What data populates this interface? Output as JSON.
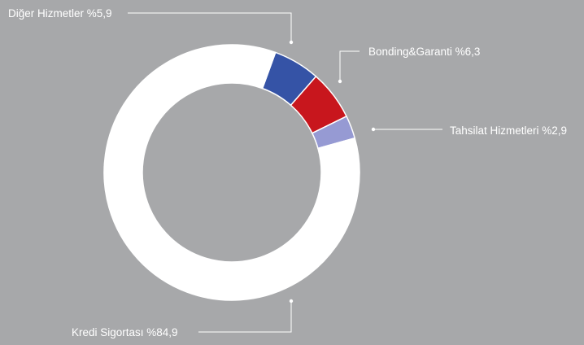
{
  "chart_data": {
    "type": "pie",
    "variant": "donut",
    "slices": [
      {
        "name": "Diğer Hizmetler",
        "value": 5.9,
        "color": "#3553a6"
      },
      {
        "name": "Bonding&Garanti",
        "value": 6.3,
        "color": "#c8161d"
      },
      {
        "name": "Tahsilat Hizmetleri",
        "value": 2.9,
        "color": "#969ad3"
      },
      {
        "name": "Kredi Sigortası",
        "value": 84.9,
        "color": "#ffffff"
      }
    ],
    "labels": {
      "diger": "Diğer Hizmetler %5,9",
      "bonding": "Bonding&Garanti %6,3",
      "tahsilat": "Tahsilat Hizmetleri %2,9",
      "kredi": "Kredi Sigortası %84,9"
    },
    "background": "#a7a8aa",
    "leader_color": "#ffffff"
  }
}
